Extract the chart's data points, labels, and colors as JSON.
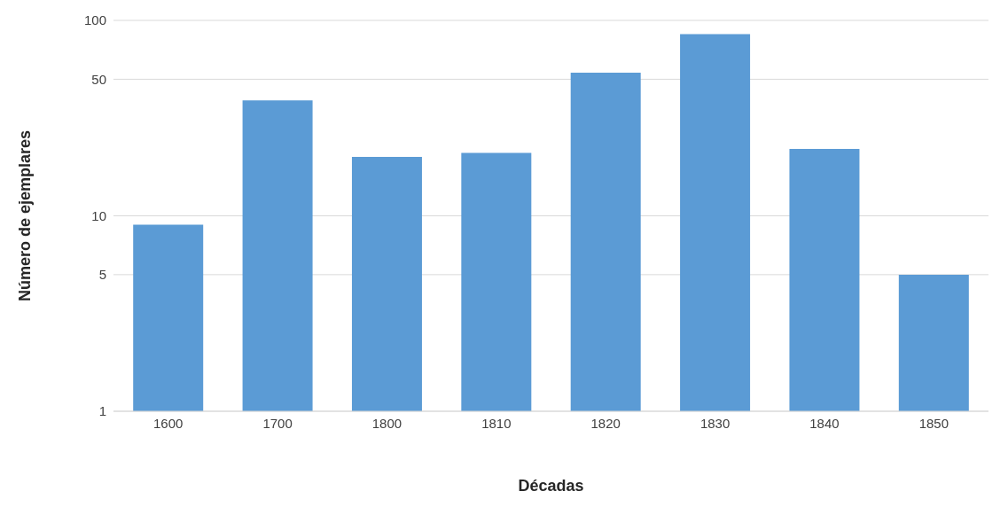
{
  "chart_data": {
    "type": "bar",
    "xlabel": "Décadas",
    "ylabel": "Número de ejemplares",
    "categories": [
      "1600",
      "1700",
      "1800",
      "1810",
      "1820",
      "1830",
      "1840",
      "1850"
    ],
    "values": [
      9,
      39,
      20,
      21,
      54,
      85,
      22,
      5
    ],
    "color": "#5b9bd5",
    "log": "y",
    "ylim": [
      1,
      100
    ],
    "yticks": [
      1,
      5,
      10,
      50,
      100
    ],
    "grid": "y"
  }
}
